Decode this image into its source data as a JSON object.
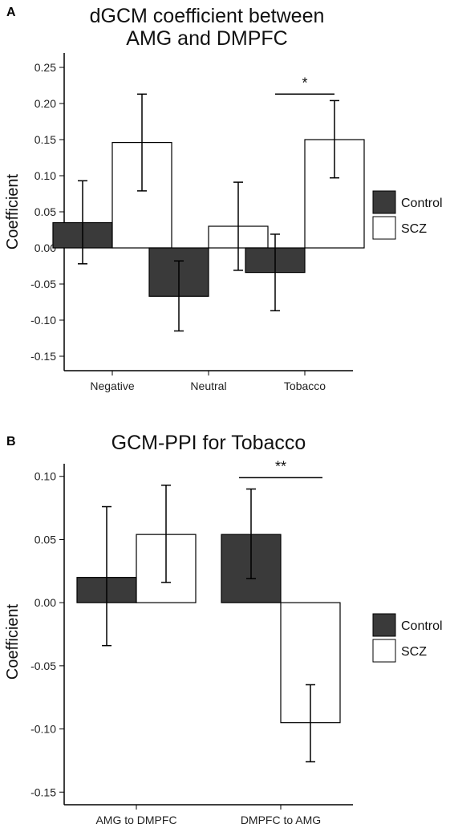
{
  "chart_data": [
    {
      "type": "bar",
      "panel_label": "A",
      "title_lines": [
        "dGCM coefficient between",
        "AMG and DMPFC"
      ],
      "ylabel": "Coefficient",
      "xlabel": "",
      "categories": [
        "Negative",
        "Neutral",
        "Tobacco"
      ],
      "ylim": [
        -0.17,
        0.27
      ],
      "yticks": [
        "0.25",
        "0.20",
        "0.15",
        "0.10",
        "0.05",
        "0.00",
        "-0.05",
        "-0.10",
        "-0.15"
      ],
      "series": [
        {
          "name": "Control",
          "color": "#3a3a3a",
          "values": [
            0.035,
            -0.067,
            -0.034
          ],
          "err_low": [
            -0.022,
            -0.115,
            -0.087
          ],
          "err_high": [
            0.093,
            -0.018,
            0.019
          ]
        },
        {
          "name": "SCZ",
          "color": "#ffffff",
          "values": [
            0.146,
            0.03,
            0.15
          ],
          "err_low": [
            0.079,
            -0.031,
            0.097
          ],
          "err_high": [
            0.213,
            0.091,
            0.204
          ]
        }
      ],
      "significance": [
        {
          "category_index": 2,
          "label": "*",
          "y": 0.213
        }
      ],
      "legend_position": "right",
      "grid": false
    },
    {
      "type": "bar",
      "panel_label": "B",
      "title_lines": [
        "GCM-PPI for Tobacco"
      ],
      "ylabel": "Coefficient",
      "xlabel": "",
      "categories": [
        "AMG to DMPFC",
        "DMPFC to AMG"
      ],
      "ylim": [
        -0.16,
        0.11
      ],
      "yticks": [
        "0.10",
        "0.05",
        "0.00",
        "-0.05",
        "-0.10",
        "-0.15"
      ],
      "series": [
        {
          "name": "Control",
          "color": "#3a3a3a",
          "values": [
            0.02,
            0.054
          ],
          "err_low": [
            -0.034,
            0.019
          ],
          "err_high": [
            0.076,
            0.09
          ]
        },
        {
          "name": "SCZ",
          "color": "#ffffff",
          "values": [
            0.054,
            -0.095
          ],
          "err_low": [
            0.016,
            -0.126
          ],
          "err_high": [
            0.093,
            -0.065
          ]
        }
      ],
      "significance": [
        {
          "category_index": 1,
          "label": "**",
          "y": 0.099
        }
      ],
      "legend_position": "right",
      "grid": false
    }
  ]
}
